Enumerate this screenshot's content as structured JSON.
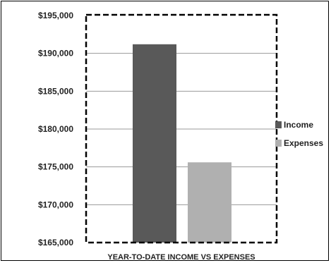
{
  "chart_data": {
    "type": "bar",
    "categories": [
      ""
    ],
    "series": [
      {
        "name": "Income",
        "values": [
          191200
        ],
        "color": "#595959"
      },
      {
        "name": "Expenses",
        "values": [
          175600
        ],
        "color": "#b0b0b0"
      }
    ],
    "title": "",
    "xlabel": "YEAR-TO-DATE INCOME VS EXPENSES",
    "ylabel": "",
    "ylim": [
      165000,
      195000
    ],
    "yticks": [
      "$165,000",
      "$170,000",
      "$175,000",
      "$180,000",
      "$185,000",
      "$190,000",
      "$195,000"
    ],
    "ytick_values": [
      165000,
      170000,
      175000,
      180000,
      185000,
      190000,
      195000
    ],
    "grid": true,
    "legend_position": "right",
    "plot_border": "dashed"
  }
}
